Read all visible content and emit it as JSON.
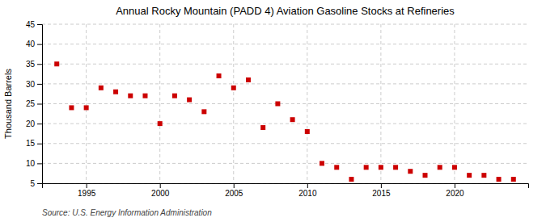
{
  "chart_data": {
    "type": "scatter",
    "title": "Annual Rocky Mountain (PADD 4) Aviation Gasoline Stocks at Refineries",
    "ylabel": "Thousand Barrels",
    "source": "Source: U.S. Energy Information Administration",
    "x": [
      1993,
      1994,
      1995,
      1996,
      1997,
      1998,
      1999,
      2000,
      2001,
      2002,
      2003,
      2004,
      2005,
      2006,
      2007,
      2008,
      2009,
      2010,
      2011,
      2012,
      2013,
      2014,
      2015,
      2016,
      2017,
      2018,
      2019,
      2020,
      2021,
      2022,
      2023,
      2024
    ],
    "values": [
      35,
      24,
      24,
      29,
      28,
      27,
      27,
      20,
      27,
      26,
      23,
      32,
      29,
      31,
      19,
      25,
      21,
      18,
      10,
      9,
      6,
      9,
      9,
      9,
      8,
      7,
      9,
      9,
      7,
      7,
      6,
      6
    ],
    "color": "#cc0000",
    "marker": "square",
    "xlim": [
      1992,
      2025
    ],
    "ylim": [
      5,
      45
    ],
    "xticks": [
      1995,
      2000,
      2005,
      2010,
      2015,
      2020
    ],
    "yticks": [
      5,
      10,
      15,
      20,
      25,
      30,
      35,
      40,
      45
    ],
    "grid": true
  }
}
